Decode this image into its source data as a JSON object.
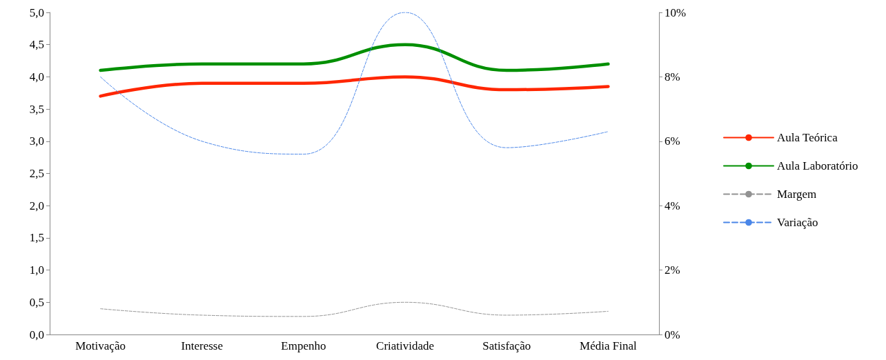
{
  "chart_data": {
    "type": "line",
    "categories": [
      "Motivação",
      "Interesse",
      "Empenho",
      "Criatividade",
      "Satisfação",
      "Média Final"
    ],
    "series": [
      {
        "name": "Aula Teórica",
        "color": "#ff2600",
        "values": [
          3.7,
          3.9,
          3.9,
          4.0,
          3.8,
          3.85
        ]
      },
      {
        "name": "Aula Laboratório",
        "color": "#008f00",
        "values": [
          4.1,
          4.2,
          4.2,
          4.5,
          4.1,
          4.2
        ]
      },
      {
        "name": "Margem",
        "color": "#929292",
        "line_style": "dashed",
        "values": [
          0.4,
          0.3,
          0.28,
          0.5,
          0.3,
          0.36
        ]
      },
      {
        "name": "Variação",
        "color": "#4a86e8",
        "line_style": "dashed",
        "axis": "y2",
        "values": [
          8,
          6,
          5.6,
          10,
          5.8,
          6.3
        ]
      }
    ],
    "ylim": [
      0,
      5
    ],
    "yticks": [
      {
        "value": 0,
        "label": "0,0"
      },
      {
        "value": 0.5,
        "label": "0,5"
      },
      {
        "value": 1,
        "label": "1,0"
      },
      {
        "value": 1.5,
        "label": "1,5"
      },
      {
        "value": 2,
        "label": "2,0"
      },
      {
        "value": 2.5,
        "label": "2,5"
      },
      {
        "value": 3,
        "label": "3,0"
      },
      {
        "value": 3.5,
        "label": "3,5"
      },
      {
        "value": 4,
        "label": "4,0"
      },
      {
        "value": 4.5,
        "label": "4,5"
      },
      {
        "value": 5,
        "label": "5,0"
      }
    ],
    "y2lim": [
      0,
      10
    ],
    "y2ticks": [
      {
        "value": 0,
        "label": "0%"
      },
      {
        "value": 2,
        "label": "2%"
      },
      {
        "value": 4,
        "label": "4%"
      },
      {
        "value": 6,
        "label": "6%"
      },
      {
        "value": 8,
        "label": "8%"
      },
      {
        "value": 10,
        "label": "10%"
      }
    ],
    "grid": false,
    "legend": "right",
    "marker": "none",
    "line_style": "solid"
  }
}
